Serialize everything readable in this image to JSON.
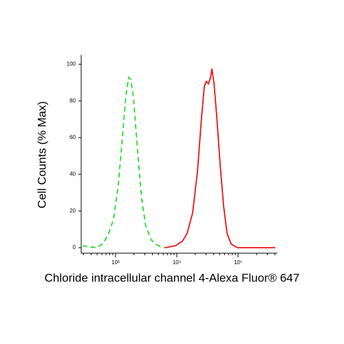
{
  "chart_data": {
    "type": "line",
    "xlabel": "Chloride intracellular channel 4-Alexa Fluor® 647",
    "ylabel": "Cell Counts (% Max)",
    "xscale": "log",
    "xlim": [
      275,
      436000
    ],
    "ylim": [
      -3,
      105
    ],
    "xticks": [
      {
        "value": 1000,
        "label": "10³"
      },
      {
        "value": 10000,
        "label": "10⁴"
      },
      {
        "value": 100000,
        "label": "10⁵"
      }
    ],
    "xminorticks": [
      300,
      400,
      500,
      600,
      700,
      800,
      900,
      2000,
      3000,
      4000,
      5000,
      6000,
      7000,
      8000,
      9000,
      20000,
      30000,
      40000,
      50000,
      60000,
      70000,
      80000,
      90000,
      200000,
      300000,
      400000
    ],
    "yticks": [
      0,
      20,
      40,
      60,
      80,
      100
    ],
    "series": [
      {
        "color": "#22dd22",
        "dash": true,
        "x": [
          289,
          484,
          628,
          773,
          925,
          1109,
          1295,
          1475,
          1635,
          1766,
          1959,
          2290,
          2675,
          3119,
          3837,
          4973,
          6440
        ],
        "values": [
          1.1,
          0,
          2.2,
          7.8,
          15.3,
          34,
          60.1,
          82.5,
          92.9,
          91.8,
          82.5,
          52.6,
          26.5,
          11.6,
          4.1,
          1.1,
          0
        ]
      },
      {
        "color": "#ee1111",
        "dash": false,
        "x": [
          6440,
          9510,
          12300,
          14760,
          18130,
          21720,
          25360,
          28120,
          30410,
          32880,
          35560,
          37410,
          40450,
          44870,
          51050,
          58080,
          66070,
          77250,
          97500,
          404600
        ],
        "values": [
          0,
          1.1,
          3.4,
          7.8,
          19.0,
          41.4,
          71.3,
          88.1,
          90.7,
          89.2,
          92.9,
          97.4,
          89.9,
          71.3,
          45.1,
          22.8,
          7.8,
          1.9,
          0,
          0
        ]
      }
    ]
  }
}
